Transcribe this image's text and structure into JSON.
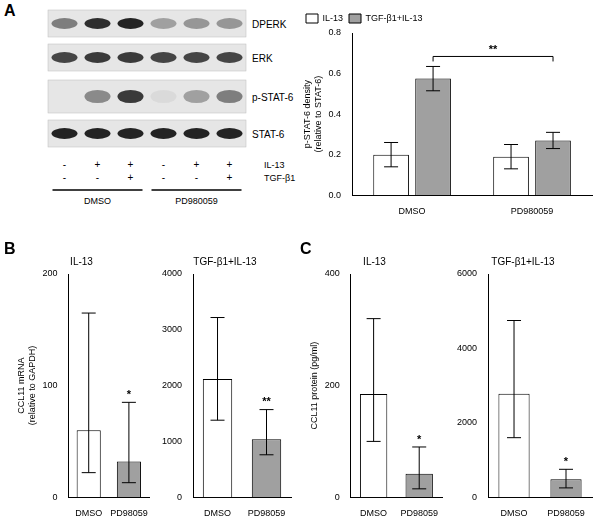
{
  "blot": {
    "panel": "A",
    "rows": [
      {
        "label": "DPERK",
        "intensity": [
          0.45,
          0.8,
          0.85,
          0.3,
          0.35,
          0.35
        ]
      },
      {
        "label": "ERK",
        "intensity": [
          0.7,
          0.75,
          0.75,
          0.7,
          0.7,
          0.7
        ]
      },
      {
        "label": "p-STAT-6",
        "intensity": [
          0,
          0.4,
          0.75,
          0.05,
          0.3,
          0.45
        ]
      },
      {
        "label": "STAT-6",
        "intensity": [
          0.85,
          0.85,
          0.85,
          0.85,
          0.85,
          0.85
        ]
      }
    ],
    "conditions": [
      {
        "label": "IL-13",
        "values": [
          "-",
          "+",
          "+",
          "-",
          "+",
          "+"
        ]
      },
      {
        "label": "TGF-β1",
        "values": [
          "-",
          "-",
          "+",
          "-",
          "-",
          "+"
        ]
      }
    ],
    "groups": [
      {
        "label": "DMSO",
        "lanes": 3
      },
      {
        "label": "PD980059",
        "lanes": 3
      }
    ]
  },
  "chart_data": [
    {
      "type": "bar",
      "categories": [
        "DMSO",
        "PD980059"
      ],
      "y_label": [
        "p-STAT-6 density",
        "(relative to STAT-6)"
      ],
      "series": [
        {
          "name": "IL-13",
          "color": "#ffffff",
          "values": [
            0.2,
            0.19
          ],
          "error_low": [
            0.14,
            0.13
          ],
          "error_high": [
            0.26,
            0.25
          ]
        },
        {
          "name": "TGF-β1+IL-13",
          "color": "#a0a0a0",
          "values": [
            0.575,
            0.27
          ],
          "error_low": [
            0.515,
            0.23
          ],
          "error_high": [
            0.635,
            0.31
          ]
        }
      ],
      "ylim": [
        0,
        0.8
      ],
      "yticks": [
        {
          "value": 0,
          "label": "0.0"
        },
        {
          "value": 0.2,
          "label": "0.2"
        },
        {
          "value": 0.4,
          "label": "0.4"
        },
        {
          "value": 0.6,
          "label": "0.6"
        },
        {
          "value": 0.8,
          "label": "0.8"
        }
      ],
      "legend": "top-left",
      "grid": false,
      "annotations": [
        {
          "text": "**",
          "series": "TGF-β1+IL-13",
          "from": "DMSO",
          "to": "PD980059"
        }
      ]
    },
    {
      "type": "bar",
      "panel": "B",
      "title": "IL-13",
      "categories": [
        "DMSO",
        "PD98059"
      ],
      "y_label": [
        "CCL11 mRNA",
        "(relative to GAPDH)"
      ],
      "values": [
        60,
        32
      ],
      "colors": [
        "#ffffff",
        "#a0a0a0"
      ],
      "error_low": [
        22,
        13
      ],
      "error_high": [
        165,
        85
      ],
      "ylim": [
        0,
        200
      ],
      "yticks": [
        0,
        100,
        200
      ],
      "grid": false,
      "annotations": [
        {
          "text": "*",
          "category": "PD98059"
        }
      ]
    },
    {
      "type": "bar",
      "title": "TGF-β1+IL-13",
      "categories": [
        "DMSO",
        "PD98059"
      ],
      "values": [
        2120,
        1040
      ],
      "colors": [
        "#ffffff",
        "#a0a0a0"
      ],
      "error_low": [
        1380,
        760
      ],
      "error_high": [
        3220,
        1570
      ],
      "ylim": [
        0,
        4000
      ],
      "yticks": [
        0,
        1000,
        2000,
        3000,
        4000
      ],
      "grid": false,
      "annotations": [
        {
          "text": "**",
          "category": "PD98059"
        }
      ]
    },
    {
      "type": "bar",
      "panel": "C",
      "title": "IL-13",
      "categories": [
        "DMSO",
        "PD98059"
      ],
      "y_label": "CCL11 protein (pg/ml)",
      "values": [
        185,
        42
      ],
      "colors": [
        "#ffffff",
        "#a0a0a0"
      ],
      "error_low": [
        100,
        15
      ],
      "error_high": [
        320,
        90
      ],
      "ylim": [
        0,
        400
      ],
      "yticks": [
        0,
        200,
        400
      ],
      "grid": false,
      "annotations": [
        {
          "text": "*",
          "category": "PD98059"
        }
      ]
    },
    {
      "type": "bar",
      "title": "TGF-β1+IL-13",
      "categories": [
        "DMSO",
        "PD98059"
      ],
      "values": [
        2780,
        480
      ],
      "colors": [
        "#ffffff",
        "#a0a0a0"
      ],
      "error_low": [
        1600,
        250
      ],
      "error_high": [
        4750,
        750
      ],
      "ylim": [
        0,
        6000
      ],
      "yticks": [
        0,
        2000,
        4000,
        6000
      ],
      "grid": false,
      "annotations": [
        {
          "text": "*",
          "category": "PD98059"
        }
      ]
    }
  ]
}
